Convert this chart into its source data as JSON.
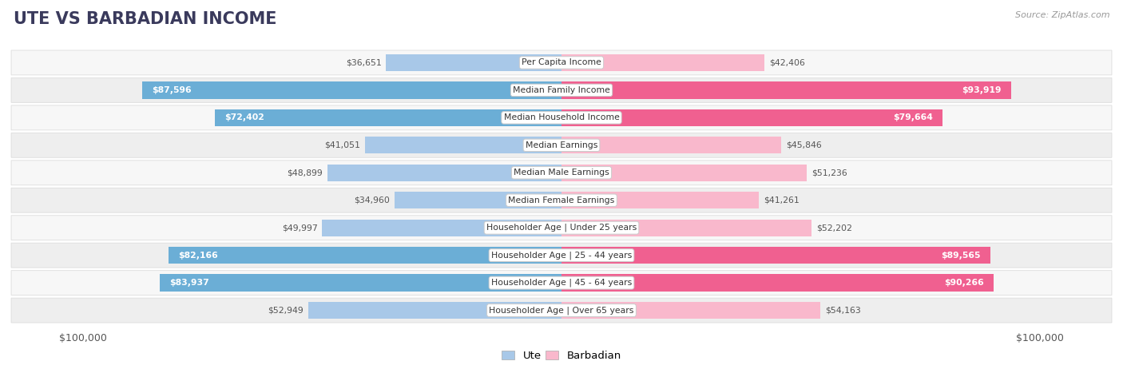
{
  "title": "UTE VS BARBADIAN INCOME",
  "source": "Source: ZipAtlas.com",
  "categories": [
    "Per Capita Income",
    "Median Family Income",
    "Median Household Income",
    "Median Earnings",
    "Median Male Earnings",
    "Median Female Earnings",
    "Householder Age | Under 25 years",
    "Householder Age | 25 - 44 years",
    "Householder Age | 45 - 64 years",
    "Householder Age | Over 65 years"
  ],
  "ute_values": [
    36651,
    87596,
    72402,
    41051,
    48899,
    34960,
    49997,
    82166,
    83937,
    52949
  ],
  "barbadian_values": [
    42406,
    93919,
    79664,
    45846,
    51236,
    41261,
    52202,
    89565,
    90266,
    54163
  ],
  "ute_labels": [
    "$36,651",
    "$87,596",
    "$72,402",
    "$41,051",
    "$48,899",
    "$34,960",
    "$49,997",
    "$82,166",
    "$83,937",
    "$52,949"
  ],
  "barbadian_labels": [
    "$42,406",
    "$93,919",
    "$79,664",
    "$45,846",
    "$51,236",
    "$41,261",
    "$52,202",
    "$89,565",
    "$90,266",
    "$54,163"
  ],
  "ute_label_inside": [
    false,
    true,
    true,
    false,
    false,
    false,
    false,
    true,
    true,
    false
  ],
  "barbadian_label_inside": [
    false,
    true,
    true,
    false,
    false,
    false,
    false,
    true,
    true,
    false
  ],
  "max_value": 100000,
  "ute_color_light": "#a8c8e8",
  "ute_color_dark": "#6baed6",
  "barbadian_color_light": "#f9b8cc",
  "barbadian_color_dark": "#f06090",
  "row_bg_light": "#f7f7f7",
  "row_bg_dark": "#eeeeee",
  "row_border": "#dddddd",
  "label_bg": "#ffffff",
  "label_border": "#cccccc",
  "title_color": "#3a3a5c",
  "source_color": "#999999",
  "value_color_dark": "#555555",
  "value_color_white": "#ffffff",
  "title_fontsize": 15,
  "bar_fontsize": 7.8,
  "axis_fontsize": 9,
  "fig_bg": "#ffffff"
}
